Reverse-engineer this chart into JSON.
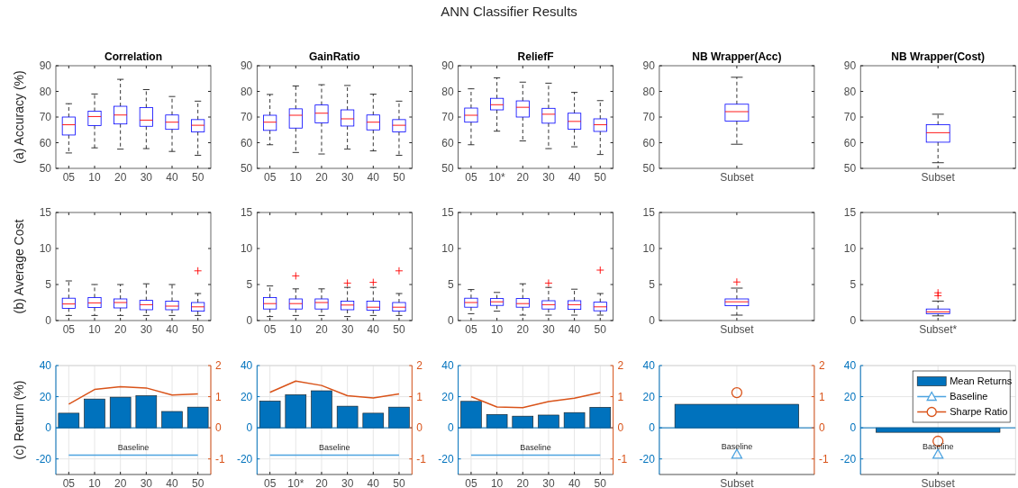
{
  "chart_data": [
    {
      "type": "other",
      "title": "ANN Classifier Results"
    },
    {
      "type": "box",
      "title": "Correlation",
      "ylabel": "(a) Accuracy (%)",
      "categories": [
        "05",
        "10",
        "20",
        "30",
        "40",
        "50"
      ],
      "ylim": [
        50,
        90
      ],
      "yticks": [
        50,
        60,
        70,
        80,
        90
      ],
      "boxes": [
        {
          "low": 56,
          "q1": 63,
          "median": 67,
          "q3": 70,
          "high": 75.2
        },
        {
          "low": 58,
          "q1": 66.7,
          "median": 70.2,
          "q3": 72.3,
          "high": 79
        },
        {
          "low": 57.5,
          "q1": 67.3,
          "median": 70.8,
          "q3": 74.2,
          "high": 84.7
        },
        {
          "low": 57.7,
          "q1": 66.4,
          "median": 68.8,
          "q3": 73.7,
          "high": 80.7
        },
        {
          "low": 56.6,
          "q1": 65.2,
          "median": 68,
          "q3": 70.8,
          "high": 78
        },
        {
          "low": 55.1,
          "q1": 64.2,
          "median": 66.8,
          "q3": 69,
          "high": 76.2
        }
      ]
    },
    {
      "type": "box",
      "title": "GainRatio",
      "categories": [
        "05",
        "10",
        "20",
        "30",
        "40",
        "50"
      ],
      "ylim": [
        50,
        90
      ],
      "yticks": [
        50,
        60,
        70,
        80,
        90
      ],
      "boxes": [
        {
          "low": 59.2,
          "q1": 64.8,
          "median": 68,
          "q3": 70.7,
          "high": 78.8
        },
        {
          "low": 56.2,
          "q1": 65.7,
          "median": 70.7,
          "q3": 73.2,
          "high": 82.1
        },
        {
          "low": 55.6,
          "q1": 67.7,
          "median": 71.5,
          "q3": 74.7,
          "high": 82.6
        },
        {
          "low": 57.5,
          "q1": 66.5,
          "median": 69.3,
          "q3": 72.8,
          "high": 82.3
        },
        {
          "low": 56.8,
          "q1": 65,
          "median": 68,
          "q3": 70.8,
          "high": 78.9
        },
        {
          "low": 55.1,
          "q1": 64.2,
          "median": 66.8,
          "q3": 69,
          "high": 76.2
        }
      ]
    },
    {
      "type": "box",
      "title": "ReliefF",
      "categories": [
        "05",
        "10*",
        "20",
        "30",
        "40",
        "50"
      ],
      "ylim": [
        50,
        90
      ],
      "yticks": [
        50,
        60,
        70,
        80,
        90
      ],
      "boxes": [
        {
          "low": 59.2,
          "q1": 68,
          "median": 70.7,
          "q3": 73.5,
          "high": 81
        },
        {
          "low": 64.5,
          "q1": 72.8,
          "median": 74.8,
          "q3": 77.3,
          "high": 85.3
        },
        {
          "low": 60.7,
          "q1": 70,
          "median": 73.8,
          "q3": 76.3,
          "high": 83.6
        },
        {
          "low": 57.7,
          "q1": 67.6,
          "median": 71.1,
          "q3": 73.4,
          "high": 83.2
        },
        {
          "low": 58.4,
          "q1": 65.3,
          "median": 68.3,
          "q3": 71.5,
          "high": 79.6
        },
        {
          "low": 55.4,
          "q1": 64.4,
          "median": 67,
          "q3": 69.3,
          "high": 76.4
        }
      ]
    },
    {
      "type": "box",
      "title": "NB Wrapper(Acc)",
      "categories": [
        "Subset"
      ],
      "ylim": [
        50,
        90
      ],
      "yticks": [
        50,
        60,
        70,
        80,
        90
      ],
      "boxes": [
        {
          "low": 59.4,
          "q1": 68.4,
          "median": 72.1,
          "q3": 75,
          "high": 85.5
        }
      ]
    },
    {
      "type": "box",
      "title": "NB Wrapper(Cost)",
      "categories": [
        "Subset"
      ],
      "ylim": [
        50,
        90
      ],
      "yticks": [
        50,
        60,
        70,
        80,
        90
      ],
      "boxes": [
        {
          "low": 52.2,
          "q1": 60.2,
          "median": 63.9,
          "q3": 67,
          "high": 71.1
        }
      ]
    },
    {
      "type": "box",
      "ylabel": "(b) Average Cost",
      "categories": [
        "05",
        "10",
        "20",
        "30",
        "40",
        "50"
      ],
      "ylim": [
        0,
        15
      ],
      "yticks": [
        0,
        5,
        10,
        15
      ],
      "boxes": [
        {
          "low": 0.7,
          "q1": 1.7,
          "median": 2.3,
          "q3": 3.1,
          "high": 5.5
        },
        {
          "low": 0.7,
          "q1": 1.8,
          "median": 2.45,
          "q3": 3.2,
          "high": 5
        },
        {
          "low": 0.7,
          "q1": 1.75,
          "median": 2.5,
          "q3": 3,
          "high": 5
        },
        {
          "low": 0.7,
          "q1": 1.5,
          "median": 2.2,
          "q3": 2.8,
          "high": 5.1
        },
        {
          "low": 0.7,
          "q1": 1.5,
          "median": 2,
          "q3": 2.7,
          "high": 5
        },
        {
          "low": 0.7,
          "q1": 1.3,
          "median": 1.9,
          "q3": 2.5,
          "high": 3.75,
          "outliers": [
            6.9
          ]
        }
      ]
    },
    {
      "type": "box",
      "categories": [
        "05",
        "10",
        "20",
        "30",
        "40",
        "50"
      ],
      "ylim": [
        0,
        15
      ],
      "yticks": [
        0,
        5,
        10,
        15
      ],
      "boxes": [
        {
          "low": 0.55,
          "q1": 1.6,
          "median": 2.35,
          "q3": 3.2,
          "high": 4.8
        },
        {
          "low": 0.7,
          "q1": 1.6,
          "median": 2.35,
          "q3": 3,
          "high": 4.4,
          "outliers": [
            6.2
          ]
        },
        {
          "low": 0.7,
          "q1": 1.6,
          "median": 2.5,
          "q3": 3,
          "high": 4.4
        },
        {
          "low": 0.55,
          "q1": 1.5,
          "median": 2.15,
          "q3": 2.7,
          "high": 4.6,
          "outliers": [
            5.2
          ]
        },
        {
          "low": 0.7,
          "q1": 1.45,
          "median": 1.85,
          "q3": 2.7,
          "high": 4.6,
          "outliers": [
            5.3
          ]
        },
        {
          "low": 0.7,
          "q1": 1.3,
          "median": 1.85,
          "q3": 2.5,
          "high": 3.75,
          "outliers": [
            6.9
          ]
        }
      ]
    },
    {
      "type": "box",
      "categories": [
        "05",
        "10",
        "20",
        "30",
        "40",
        "50"
      ],
      "ylim": [
        0,
        15
      ],
      "yticks": [
        0,
        5,
        10,
        15
      ],
      "boxes": [
        {
          "low": 0.95,
          "q1": 1.85,
          "median": 2.5,
          "q3": 3.1,
          "high": 4.3
        },
        {
          "low": 1.3,
          "q1": 2.1,
          "median": 2.6,
          "q3": 3.05,
          "high": 3.9
        },
        {
          "low": 0.75,
          "q1": 1.85,
          "median": 2.35,
          "q3": 3.05,
          "high": 5.1
        },
        {
          "low": 0.75,
          "q1": 1.6,
          "median": 2.2,
          "q3": 2.75,
          "high": 4.6,
          "outliers": [
            5.2
          ]
        },
        {
          "low": 0.75,
          "q1": 1.55,
          "median": 2.2,
          "q3": 2.75,
          "high": 4.35
        },
        {
          "low": 0.75,
          "q1": 1.35,
          "median": 1.9,
          "q3": 2.55,
          "high": 3.75,
          "outliers": [
            7
          ]
        }
      ]
    },
    {
      "type": "box",
      "categories": [
        "Subset"
      ],
      "ylim": [
        0,
        15
      ],
      "yticks": [
        0,
        5,
        10,
        15
      ],
      "boxes": [
        {
          "low": 0.75,
          "q1": 2.05,
          "median": 2.6,
          "q3": 3,
          "high": 4.5,
          "outliers": [
            5.35
          ]
        }
      ]
    },
    {
      "type": "box",
      "categories": [
        "Subset*"
      ],
      "ylim": [
        0,
        15
      ],
      "yticks": [
        0,
        5,
        10,
        15
      ],
      "boxes": [
        {
          "low": 0.65,
          "q1": 0.95,
          "median": 1.2,
          "q3": 1.6,
          "high": 2.7,
          "outliers": [
            3.45,
            3.85
          ]
        }
      ]
    },
    {
      "type": "bar",
      "ylabel": "(c) Return (%)",
      "categories": [
        "05",
        "10",
        "20",
        "30",
        "40",
        "50"
      ],
      "ylim": [
        -30,
        40
      ],
      "yticks": [
        -20,
        0,
        20,
        40
      ],
      "y2lim": [
        -1.5,
        2
      ],
      "y2ticks": [
        -1,
        0,
        1,
        2
      ],
      "grid": true,
      "ref_lines": [
        {
          "axis": "y",
          "value": 0,
          "color": "#0072bd"
        }
      ],
      "annotations": [
        {
          "text": "Baseline",
          "y": -17.6
        }
      ],
      "series": [
        {
          "type": "bar",
          "color": "#0072bd",
          "values": [
            9.4,
            18.5,
            19.7,
            20.7,
            10.5,
            13.3
          ]
        },
        {
          "type": "line",
          "color": "#4da3e0",
          "values": [
            -17.6,
            -17.6,
            -17.6,
            -17.6,
            -17.6,
            -17.6
          ]
        },
        {
          "type": "line",
          "axis": "y2",
          "color": "#d95319",
          "values": [
            0.76,
            1.23,
            1.32,
            1.28,
            1.05,
            1.09
          ]
        }
      ]
    },
    {
      "type": "bar",
      "categories": [
        "05",
        "10*",
        "20",
        "30",
        "40",
        "50"
      ],
      "ylim": [
        -30,
        40
      ],
      "yticks": [
        -20,
        0,
        20,
        40
      ],
      "y2lim": [
        -1.5,
        2
      ],
      "y2ticks": [
        -1,
        0,
        1,
        2
      ],
      "grid": true,
      "ref_lines": [
        {
          "axis": "y",
          "value": 0,
          "color": "#0072bd"
        }
      ],
      "annotations": [
        {
          "text": "Baseline",
          "y": -17.6
        }
      ],
      "series": [
        {
          "type": "bar",
          "color": "#0072bd",
          "values": [
            17.2,
            21.3,
            23.8,
            13.9,
            9.4,
            13.3
          ]
        },
        {
          "type": "line",
          "color": "#4da3e0",
          "values": [
            -17.6,
            -17.6,
            -17.6,
            -17.6,
            -17.6,
            -17.6
          ]
        },
        {
          "type": "line",
          "axis": "y2",
          "color": "#d95319",
          "values": [
            1.14,
            1.5,
            1.36,
            1.03,
            0.96,
            1.09
          ]
        }
      ]
    },
    {
      "type": "bar",
      "categories": [
        "05",
        "10",
        "20",
        "30",
        "40",
        "50"
      ],
      "ylim": [
        -30,
        40
      ],
      "yticks": [
        -20,
        0,
        20,
        40
      ],
      "y2lim": [
        -1.5,
        2
      ],
      "y2ticks": [
        -1,
        0,
        1,
        2
      ],
      "grid": true,
      "ref_lines": [
        {
          "axis": "y",
          "value": 0,
          "color": "#0072bd"
        }
      ],
      "annotations": [
        {
          "text": "Baseline",
          "y": -17.6
        }
      ],
      "series": [
        {
          "type": "bar",
          "color": "#0072bd",
          "values": [
            17,
            8.6,
            7.5,
            8.2,
            9.8,
            13.2
          ]
        },
        {
          "type": "line",
          "color": "#4da3e0",
          "values": [
            -17.6,
            -17.6,
            -17.6,
            -17.6,
            -17.6,
            -17.6
          ]
        },
        {
          "type": "line",
          "axis": "y2",
          "color": "#d95319",
          "values": [
            1,
            0.67,
            0.65,
            0.84,
            0.95,
            1.13
          ]
        }
      ]
    },
    {
      "type": "bar",
      "categories": [
        "Subset"
      ],
      "ylim": [
        -30,
        40
      ],
      "yticks": [
        -20,
        0,
        20,
        40
      ],
      "y2lim": [
        -1.5,
        2
      ],
      "y2ticks": [
        -1,
        0,
        1,
        2
      ],
      "grid": true,
      "ref_lines": [
        {
          "axis": "y",
          "value": 0,
          "color": "#0072bd"
        }
      ],
      "annotations": [
        {
          "text": "Baseline",
          "y": -17
        }
      ],
      "series": [
        {
          "type": "bar",
          "color": "#0072bd",
          "values": [
            15.1
          ]
        },
        {
          "type": "scatter",
          "marker": "triangle",
          "color": "#4da3e0",
          "values": [
            -17
          ]
        },
        {
          "type": "scatter",
          "marker": "circle",
          "axis": "y2",
          "color": "#d95319",
          "values": [
            1.13
          ]
        }
      ]
    },
    {
      "type": "bar",
      "categories": [
        "Subset"
      ],
      "ylim": [
        -30,
        40
      ],
      "yticks": [
        -20,
        0,
        20,
        40
      ],
      "grid": true,
      "legend": "top right",
      "ref_lines": [
        {
          "axis": "y",
          "value": 0,
          "color": "#0072bd"
        }
      ],
      "annotations": [
        {
          "text": "Baseline",
          "y": -17
        }
      ],
      "series": [
        {
          "type": "bar",
          "name": "Mean Returns",
          "color": "#0072bd",
          "values": [
            -2.9
          ]
        },
        {
          "type": "scatter",
          "name": "Baseline",
          "marker": "triangle",
          "color": "#4da3e0",
          "values": [
            -17
          ]
        },
        {
          "type": "scatter",
          "name": "Sharpe Ratio",
          "marker": "circle",
          "color": "#d95319",
          "values": [
            -8.6
          ]
        }
      ]
    }
  ]
}
